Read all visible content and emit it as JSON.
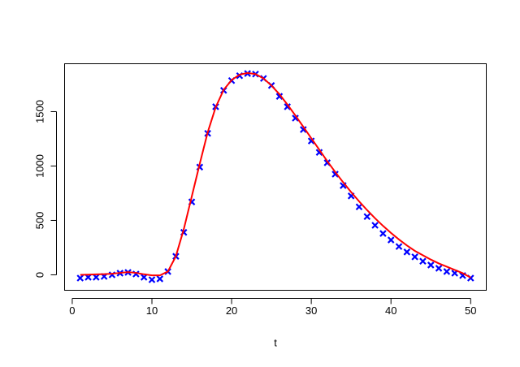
{
  "chart_data": {
    "type": "scatter",
    "x_label": "t",
    "x": [
      1,
      2,
      3,
      4,
      5,
      6,
      7,
      8,
      9,
      10,
      11,
      12,
      13,
      14,
      15,
      16,
      17,
      18,
      19,
      20,
      21,
      22,
      23,
      24,
      25,
      26,
      27,
      28,
      29,
      30,
      31,
      32,
      33,
      34,
      35,
      36,
      37,
      38,
      39,
      40,
      41,
      42,
      43,
      44,
      45,
      46,
      47,
      48,
      49,
      50
    ],
    "series": [
      {
        "type": "scatter",
        "marker": "x",
        "color": "#0000ff",
        "values": [
          -30,
          -22,
          -22,
          -15,
          0,
          15,
          22,
          7,
          -22,
          -45,
          -37,
          30,
          170,
          390,
          670,
          990,
          1300,
          1545,
          1695,
          1785,
          1830,
          1850,
          1845,
          1805,
          1740,
          1640,
          1545,
          1440,
          1335,
          1230,
          1125,
          1030,
          925,
          820,
          725,
          625,
          535,
          455,
          380,
          320,
          260,
          210,
          165,
          125,
          90,
          60,
          30,
          15,
          -7,
          -30
        ]
      },
      {
        "type": "line",
        "color": "#ff0000",
        "values": [
          0,
          2,
          4,
          6,
          10,
          18,
          25,
          18,
          5,
          -5,
          -5,
          30,
          170,
          420,
          720,
          1020,
          1310,
          1540,
          1700,
          1790,
          1840,
          1855,
          1845,
          1805,
          1740,
          1660,
          1565,
          1465,
          1360,
          1255,
          1150,
          1045,
          945,
          850,
          760,
          675,
          595,
          520,
          450,
          385,
          325,
          270,
          220,
          180,
          140,
          105,
          75,
          45,
          15,
          -25
        ]
      }
    ],
    "xlim": [
      -0.96,
      51.96
    ],
    "xticks": [
      0,
      10,
      20,
      30,
      40,
      50
    ],
    "ylim": [
      -142,
      1940
    ],
    "yticks": [
      0,
      500,
      1000,
      1500
    ]
  }
}
